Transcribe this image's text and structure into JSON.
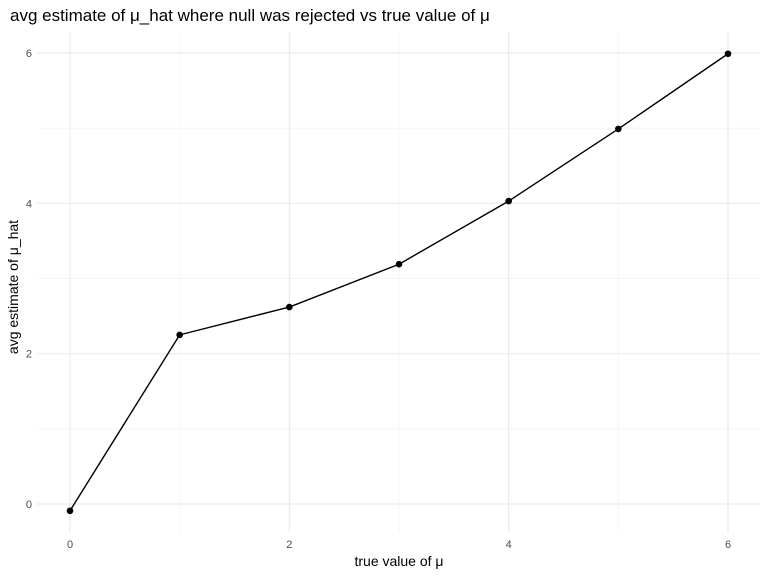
{
  "chart_data": {
    "type": "line",
    "title": "avg estimate of μ_hat where null was rejected vs true value of μ",
    "xlabel": "true value of μ",
    "ylabel": "avg estimate of μ_hat",
    "xlim": [
      0,
      6
    ],
    "ylim": [
      0,
      6
    ],
    "xticks": [
      0,
      2,
      4,
      6
    ],
    "yticks": [
      0,
      2,
      4,
      6
    ],
    "grid": true,
    "series": [
      {
        "x": [
          0,
          1,
          2,
          3,
          4,
          5,
          6
        ],
        "y": [
          -0.09,
          2.25,
          2.62,
          3.19,
          4.03,
          4.99,
          5.99
        ]
      }
    ],
    "colors": {
      "line": "#000000",
      "point": "#000000",
      "grid_major": "#ebebeb",
      "grid_minor": "#f5f5f5"
    }
  }
}
